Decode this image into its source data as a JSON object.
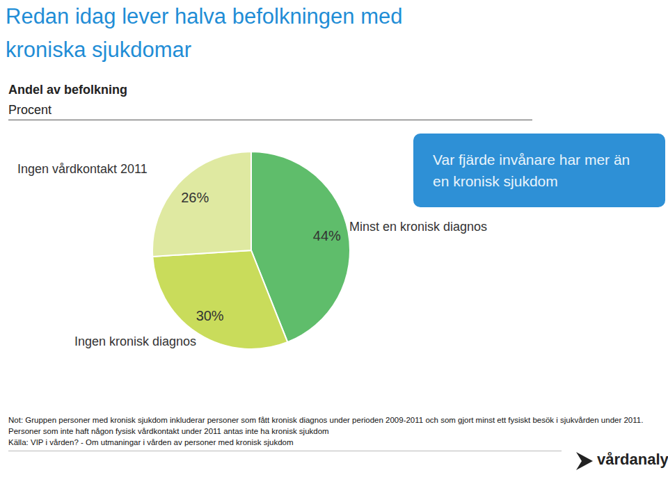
{
  "chart_data": {
    "type": "pie",
    "title": "Redan idag lever halva befolkningen med kroniska sjukdomar",
    "subtitle": "Andel av befolkning",
    "unit": "Procent",
    "categories": [
      "Minst en kronisk diagnos",
      "Ingen kronisk diagnos",
      "Ingen vårdkontakt 2011"
    ],
    "values": [
      44,
      30,
      26
    ],
    "value_labels": [
      "44%",
      "30%",
      "26%"
    ],
    "colors": [
      "#5FBD6B",
      "#C9DC5B",
      "#DFE9A1"
    ],
    "data_labels": true,
    "annotation": "Var fjärde invånare har mer än en kronisk sjukdom",
    "note": "Not: Gruppen personer med kronisk sjukdom inkluderar personer som fått kronisk diagnos under perioden 2009-2011 och som gjort minst ett fysiskt besök i sjukvården under 2011. Personer som inte haft någon fysisk vårdkontakt under 2011  antas inte ha kronisk sjukdom",
    "source": "Källa: VIP i vården? - Om utmaningar i vården av personer med kronisk sjukdom",
    "logo": "vårdanalys"
  }
}
